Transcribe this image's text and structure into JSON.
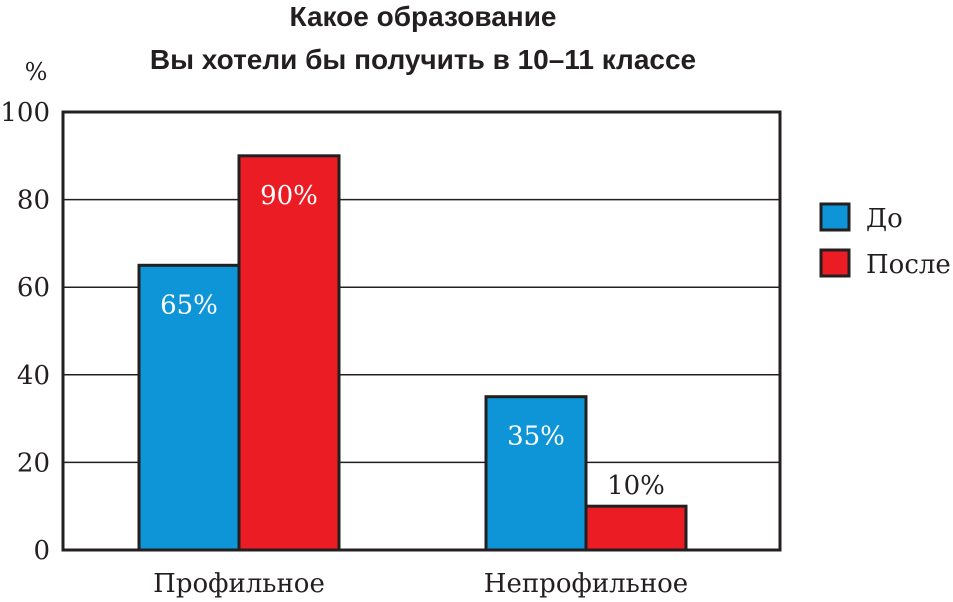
{
  "chart_data": {
    "type": "bar",
    "title_lines": [
      "Какое образование",
      "Вы хотели бы получить в 10–11 классе"
    ],
    "ylabel": "%",
    "ylim": [
      0,
      100
    ],
    "yticks": [
      "0",
      "20",
      "40",
      "60",
      "80",
      "100"
    ],
    "ytick_values": [
      0,
      20,
      40,
      60,
      80,
      100
    ],
    "grid": true,
    "categories": [
      "Профильное",
      "Непрофильное"
    ],
    "series": [
      {
        "name": "До",
        "color": "#0e95d8",
        "values": [
          65,
          35
        ],
        "labels": [
          "65%",
          "35%"
        ],
        "label_color": "#ffffff"
      },
      {
        "name": "После",
        "color": "#ec1c24",
        "values": [
          90,
          10
        ],
        "labels": [
          "90%",
          "10%"
        ],
        "label_color": "#ffffff"
      }
    ],
    "legend_position": "right"
  }
}
